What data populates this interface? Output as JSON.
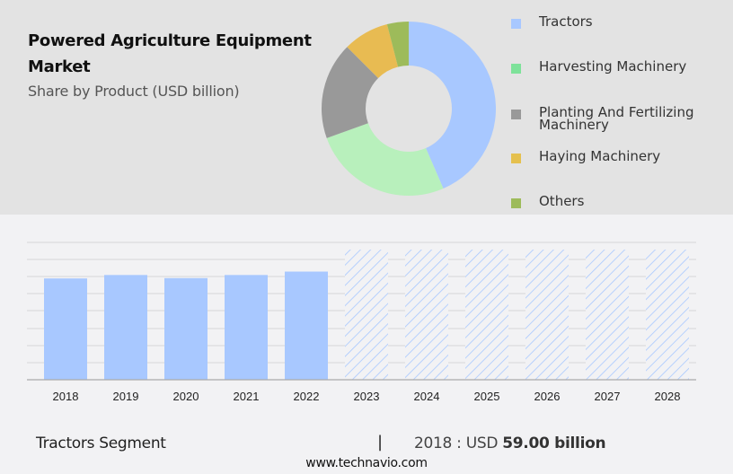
{
  "header": {
    "title": "Powered Agriculture Equipment Market",
    "subtitle": "Share by Product (USD billion)"
  },
  "legend": [
    {
      "label": "Tractors",
      "color": "#a8c8ff"
    },
    {
      "label": "Harvesting Machinery",
      "color": "#7ee29a"
    },
    {
      "label": "Planting And Fertilizing Machinery",
      "color": "#999999"
    },
    {
      "label": "Haying Machinery",
      "color": "#e5c04e"
    },
    {
      "label": "Others",
      "color": "#9dbb5a"
    }
  ],
  "footer": {
    "segment": "Tractors Segment",
    "separator": "|",
    "year_value_prefix": "2018 : USD",
    "value": "59.00 billion",
    "website": "www.technavio.com"
  },
  "chart_data": [
    {
      "type": "pie",
      "title": "Share by Product (USD billion)",
      "donut": true,
      "categories": [
        "Tractors",
        "Harvesting Machinery",
        "Planting And Fertilizing Machinery",
        "Haying Machinery",
        "Others"
      ],
      "values": [
        43.5,
        26,
        18,
        8.5,
        4
      ],
      "colors": [
        "#a8c8ff",
        "#b8f0bc",
        "#999999",
        "#e8bb52",
        "#9dbb5a"
      ],
      "legend_position": "right"
    },
    {
      "type": "bar",
      "title": "Tractors Segment",
      "categories": [
        "2018",
        "2019",
        "2020",
        "2021",
        "2022",
        "2023",
        "2024",
        "2025",
        "2026",
        "2027",
        "2028"
      ],
      "values": [
        59.0,
        61.0,
        59.2,
        61.0,
        63.0,
        null,
        null,
        null,
        null,
        null,
        null
      ],
      "forecast_categories": [
        "2023",
        "2024",
        "2025",
        "2026",
        "2027",
        "2028"
      ],
      "forecast_style": "hatched",
      "xlabel": "",
      "ylabel": "",
      "ylim": [
        0,
        80
      ],
      "grid": true,
      "color": "#a8c8ff"
    }
  ]
}
